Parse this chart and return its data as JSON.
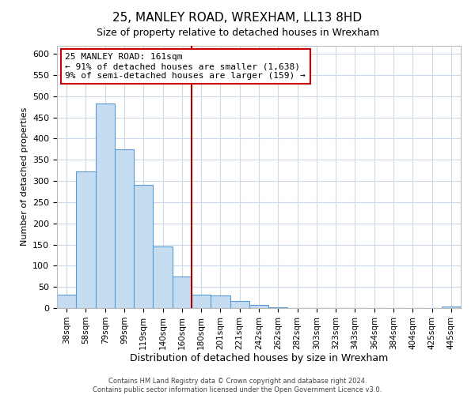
{
  "title": "25, MANLEY ROAD, WREXHAM, LL13 8HD",
  "subtitle": "Size of property relative to detached houses in Wrexham",
  "xlabel": "Distribution of detached houses by size in Wrexham",
  "ylabel": "Number of detached properties",
  "bar_labels": [
    "38sqm",
    "58sqm",
    "79sqm",
    "99sqm",
    "119sqm",
    "140sqm",
    "160sqm",
    "180sqm",
    "201sqm",
    "221sqm",
    "242sqm",
    "262sqm",
    "282sqm",
    "303sqm",
    "323sqm",
    "343sqm",
    "364sqm",
    "384sqm",
    "404sqm",
    "425sqm",
    "445sqm"
  ],
  "bar_heights": [
    32,
    322,
    483,
    375,
    291,
    146,
    75,
    32,
    29,
    17,
    8,
    1,
    0,
    0,
    0,
    0,
    0,
    0,
    0,
    0,
    3
  ],
  "bar_color": "#c6dcf0",
  "bar_edge_color": "#5b9bd5",
  "highlight_line_color": "#aa0000",
  "annotation_text": "25 MANLEY ROAD: 161sqm\n← 91% of detached houses are smaller (1,638)\n9% of semi-detached houses are larger (159) →",
  "annotation_box_color": "#ffffff",
  "annotation_box_edge": "#cc0000",
  "ylim": [
    0,
    620
  ],
  "yticks": [
    0,
    50,
    100,
    150,
    200,
    250,
    300,
    350,
    400,
    450,
    500,
    550,
    600
  ],
  "footer_line1": "Contains HM Land Registry data © Crown copyright and database right 2024.",
  "footer_line2": "Contains public sector information licensed under the Open Government Licence v3.0.",
  "background_color": "#ffffff",
  "grid_color": "#ccd8ec"
}
